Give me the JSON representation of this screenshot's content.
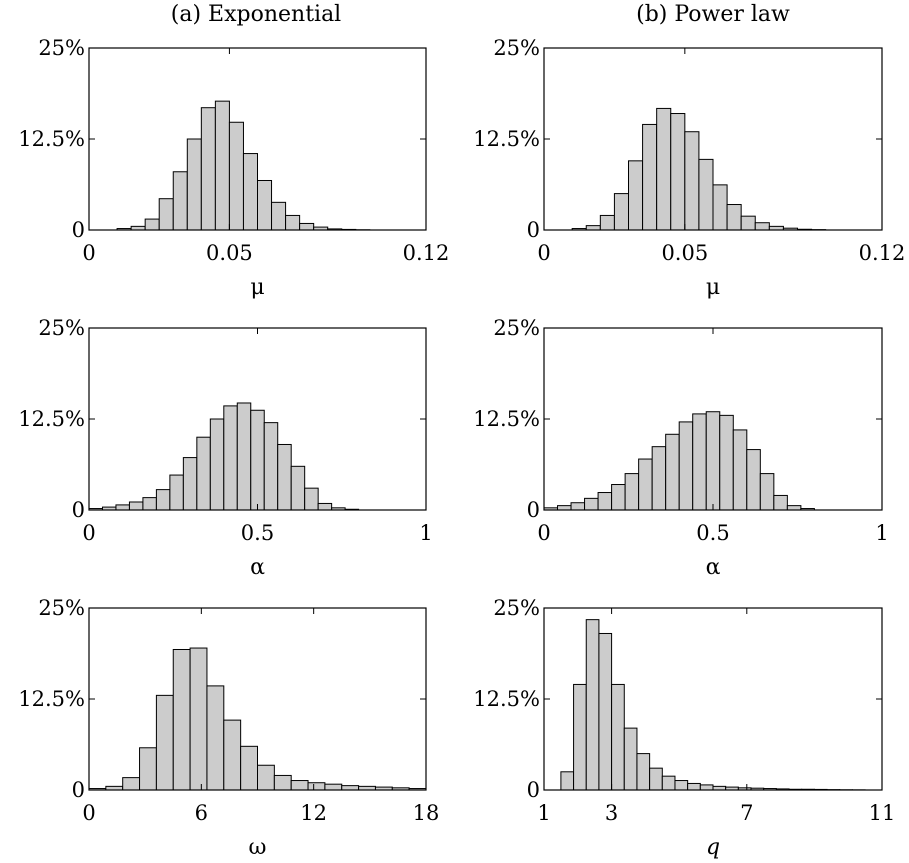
{
  "columns": [
    {
      "title": "(a) Exponential"
    },
    {
      "title": "(b) Power law"
    }
  ],
  "chart_data": [
    {
      "type": "bar",
      "panel": "exponential-mu",
      "xlabel": "μ",
      "xlim": [
        0,
        0.12
      ],
      "ylim": [
        0,
        0.25
      ],
      "xticks": [
        0,
        0.05,
        0.12
      ],
      "xtick_labels": [
        "0",
        "0.05",
        "0.12"
      ],
      "yticks": [
        0,
        0.125,
        0.25
      ],
      "ytick_labels": [
        "0",
        "12.5%",
        "25%"
      ],
      "bin_edges": [
        0,
        0.005,
        0.01,
        0.015,
        0.02,
        0.025,
        0.03,
        0.035,
        0.04,
        0.045,
        0.05,
        0.055,
        0.06,
        0.065,
        0.07,
        0.075,
        0.08,
        0.085,
        0.09,
        0.095,
        0.1,
        0.105,
        0.11,
        0.115,
        0.12
      ],
      "values": [
        0,
        0,
        0.002,
        0.005,
        0.015,
        0.043,
        0.08,
        0.125,
        0.168,
        0.177,
        0.148,
        0.105,
        0.068,
        0.038,
        0.02,
        0.009,
        0.004,
        0.0015,
        0.0008,
        0.0003,
        0,
        0,
        0,
        0
      ],
      "grid": false
    },
    {
      "type": "bar",
      "panel": "powerlaw-mu",
      "xlabel": "μ",
      "xlim": [
        0,
        0.12
      ],
      "ylim": [
        0,
        0.25
      ],
      "xticks": [
        0,
        0.05,
        0.12
      ],
      "xtick_labels": [
        "0",
        "0.05",
        "0.12"
      ],
      "yticks": [
        0,
        0.125,
        0.25
      ],
      "ytick_labels": [
        "0",
        "12.5%",
        "25%"
      ],
      "bin_edges": [
        0,
        0.005,
        0.01,
        0.015,
        0.02,
        0.025,
        0.03,
        0.035,
        0.04,
        0.045,
        0.05,
        0.055,
        0.06,
        0.065,
        0.07,
        0.075,
        0.08,
        0.085,
        0.09,
        0.095,
        0.1,
        0.105,
        0.11,
        0.115,
        0.12
      ],
      "values": [
        0,
        0,
        0.002,
        0.006,
        0.02,
        0.05,
        0.095,
        0.145,
        0.167,
        0.16,
        0.135,
        0.097,
        0.062,
        0.035,
        0.019,
        0.01,
        0.005,
        0.0025,
        0.001,
        0.0005,
        0,
        0,
        0,
        0
      ],
      "grid": false
    },
    {
      "type": "bar",
      "panel": "exponential-alpha",
      "xlabel": "α",
      "xlim": [
        0,
        1
      ],
      "ylim": [
        0,
        0.25
      ],
      "xticks": [
        0,
        0.5,
        1
      ],
      "xtick_labels": [
        "0",
        "0.5",
        "1"
      ],
      "yticks": [
        0,
        0.125,
        0.25
      ],
      "ytick_labels": [
        "0",
        "12.5%",
        "25%"
      ],
      "bin_edges": [
        0,
        0.04,
        0.08,
        0.12,
        0.16,
        0.2,
        0.24,
        0.28,
        0.32,
        0.36,
        0.4,
        0.44,
        0.48,
        0.52,
        0.56,
        0.6,
        0.64,
        0.68,
        0.72,
        0.76,
        0.8,
        0.84,
        0.88,
        0.92,
        0.96,
        1
      ],
      "values": [
        0.002,
        0.004,
        0.007,
        0.011,
        0.017,
        0.028,
        0.048,
        0.072,
        0.1,
        0.125,
        0.143,
        0.147,
        0.137,
        0.12,
        0.09,
        0.06,
        0.03,
        0.009,
        0.003,
        0.001,
        0,
        0,
        0,
        0,
        0
      ],
      "grid": false
    },
    {
      "type": "bar",
      "panel": "powerlaw-alpha",
      "xlabel": "α",
      "xlim": [
        0,
        1
      ],
      "ylim": [
        0,
        0.25
      ],
      "xticks": [
        0,
        0.5,
        1
      ],
      "xtick_labels": [
        "0",
        "0.5",
        "1"
      ],
      "yticks": [
        0,
        0.125,
        0.25
      ],
      "ytick_labels": [
        "0",
        "12.5%",
        "25%"
      ],
      "bin_edges": [
        0,
        0.04,
        0.08,
        0.12,
        0.16,
        0.2,
        0.24,
        0.28,
        0.32,
        0.36,
        0.4,
        0.44,
        0.48,
        0.52,
        0.56,
        0.6,
        0.64,
        0.68,
        0.72,
        0.76,
        0.8,
        0.84,
        0.88,
        0.92,
        0.96,
        1
      ],
      "values": [
        0.003,
        0.006,
        0.01,
        0.016,
        0.024,
        0.035,
        0.05,
        0.07,
        0.087,
        0.104,
        0.121,
        0.132,
        0.135,
        0.13,
        0.11,
        0.083,
        0.05,
        0.02,
        0.006,
        0.002,
        0,
        0,
        0,
        0,
        0
      ],
      "grid": false
    },
    {
      "type": "bar",
      "panel": "exponential-omega",
      "xlabel": "ω",
      "xlim": [
        0,
        18
      ],
      "ylim": [
        0,
        0.25
      ],
      "xticks": [
        0,
        6,
        12,
        18
      ],
      "xtick_labels": [
        "0",
        "6",
        "12",
        "18"
      ],
      "yticks": [
        0,
        0.125,
        0.25
      ],
      "ytick_labels": [
        "0",
        "12.5%",
        "25%"
      ],
      "bin_edges": [
        0,
        0.9,
        1.8,
        2.7,
        3.6,
        4.5,
        5.4,
        6.3,
        7.2,
        8.1,
        9,
        9.9,
        10.8,
        11.7,
        12.6,
        13.5,
        14.4,
        15.3,
        16.2,
        17.1,
        18
      ],
      "values": [
        0.002,
        0.005,
        0.017,
        0.058,
        0.13,
        0.193,
        0.195,
        0.143,
        0.096,
        0.06,
        0.034,
        0.02,
        0.013,
        0.01,
        0.008,
        0.006,
        0.005,
        0.004,
        0.003,
        0.002
      ],
      "grid": false
    },
    {
      "type": "bar",
      "panel": "powerlaw-q",
      "xlabel": "q",
      "xlim": [
        1,
        11
      ],
      "ylim": [
        0,
        0.25
      ],
      "xticks": [
        1,
        3,
        7,
        11
      ],
      "xtick_labels": [
        "1",
        "3",
        "7",
        "11"
      ],
      "yticks": [
        0,
        0.125,
        0.25
      ],
      "ytick_labels": [
        "0",
        "12.5%",
        "25%"
      ],
      "bin_edges": [
        1.5,
        1.875,
        2.25,
        2.625,
        3,
        3.375,
        3.75,
        4.125,
        4.5,
        4.875,
        5.25,
        5.625,
        6,
        6.375,
        6.75,
        7.125,
        7.5,
        7.875,
        8.25,
        8.625,
        9,
        9.375,
        9.75,
        10.125,
        10.5
      ],
      "values": [
        0.025,
        0.145,
        0.234,
        0.215,
        0.145,
        0.085,
        0.05,
        0.03,
        0.019,
        0.013,
        0.009,
        0.007,
        0.005,
        0.004,
        0.003,
        0.0025,
        0.002,
        0.0015,
        0.001,
        0.001,
        0.0008,
        0.0005,
        0.0003,
        0.0002
      ],
      "grid": false
    }
  ]
}
